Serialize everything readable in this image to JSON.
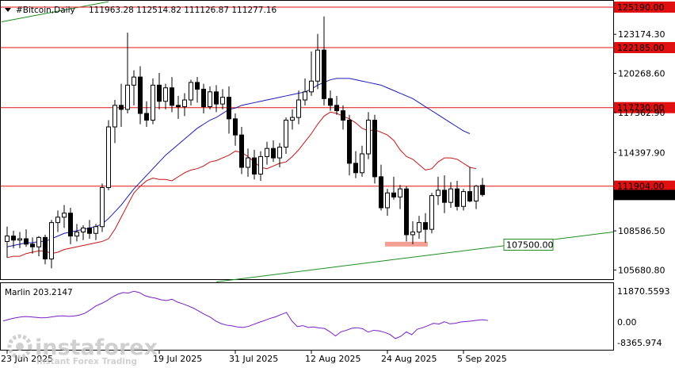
{
  "header": {
    "symbol_text": "#Bitcoin,Daily",
    "ohlc_text": "111963.28 112514.82 111126.87 111277.16"
  },
  "indicator": {
    "name_text": "Marlin 203.2147",
    "scale_top": "11870.5593",
    "scale_mid": "0.00",
    "scale_bottom": "-8365.974"
  },
  "price_axis_labels": [
    "123174.30",
    "120268.60",
    "117362.90",
    "114397.90",
    "108586.50",
    "105680.80"
  ],
  "horizontal_levels": [
    {
      "value": 125190.0,
      "label": "125190.00"
    },
    {
      "value": 122185.0,
      "label": "122185.00"
    },
    {
      "value": 117730.0,
      "label": "117730.00"
    },
    {
      "value": 111904.0,
      "label": "111904.00"
    }
  ],
  "current_price_label": "111277.16",
  "support_label": "107500.00",
  "date_labels": [
    {
      "index": 0,
      "label": "23 Jun 2025"
    },
    {
      "index": 24,
      "label": "19 Jul 2025"
    },
    {
      "index": 36,
      "label": "31 Jul 2025"
    },
    {
      "index": 48,
      "label": "12 Aug 2025"
    },
    {
      "index": 60,
      "label": "24 Aug 2025"
    },
    {
      "index": 72,
      "label": "5 Sep 2025"
    }
  ],
  "watermark": {
    "brand": "instaforex",
    "tagline": "Instant Forex Trading"
  },
  "chart_data": {
    "type": "candlestick",
    "title": "#Bitcoin,Daily",
    "ylim": [
      105000,
      125600
    ],
    "candles": [
      {
        "o": 107800,
        "h": 108900,
        "l": 106600,
        "c": 108200
      },
      {
        "o": 108200,
        "h": 108600,
        "l": 107300,
        "c": 107900
      },
      {
        "o": 107900,
        "h": 108500,
        "l": 107300,
        "c": 108000
      },
      {
        "o": 108000,
        "h": 108700,
        "l": 107400,
        "c": 107600
      },
      {
        "o": 107600,
        "h": 108100,
        "l": 106900,
        "c": 107400
      },
      {
        "o": 107400,
        "h": 108200,
        "l": 106700,
        "c": 108100
      },
      {
        "o": 108100,
        "h": 108300,
        "l": 106100,
        "c": 106500
      },
      {
        "o": 106500,
        "h": 109400,
        "l": 105800,
        "c": 109200
      },
      {
        "o": 109200,
        "h": 110100,
        "l": 108500,
        "c": 109600
      },
      {
        "o": 109600,
        "h": 110500,
        "l": 108800,
        "c": 109900
      },
      {
        "o": 109900,
        "h": 110300,
        "l": 107600,
        "c": 108200
      },
      {
        "o": 108200,
        "h": 109100,
        "l": 107800,
        "c": 108500
      },
      {
        "o": 108500,
        "h": 109000,
        "l": 107900,
        "c": 108800
      },
      {
        "o": 108800,
        "h": 109400,
        "l": 108000,
        "c": 108400
      },
      {
        "o": 108400,
        "h": 109100,
        "l": 107900,
        "c": 108900
      },
      {
        "o": 108900,
        "h": 112100,
        "l": 108500,
        "c": 111800
      },
      {
        "o": 111800,
        "h": 116800,
        "l": 111600,
        "c": 116300
      },
      {
        "o": 116300,
        "h": 118300,
        "l": 115100,
        "c": 117900
      },
      {
        "o": 117900,
        "h": 119500,
        "l": 116300,
        "c": 117600
      },
      {
        "o": 117600,
        "h": 123300,
        "l": 117300,
        "c": 119400
      },
      {
        "o": 119400,
        "h": 120500,
        "l": 117900,
        "c": 120000
      },
      {
        "o": 120000,
        "h": 120800,
        "l": 116500,
        "c": 117300
      },
      {
        "o": 117300,
        "h": 118200,
        "l": 116300,
        "c": 116800
      },
      {
        "o": 116800,
        "h": 119900,
        "l": 116500,
        "c": 119400
      },
      {
        "o": 119400,
        "h": 120300,
        "l": 117600,
        "c": 118200
      },
      {
        "o": 118200,
        "h": 119500,
        "l": 117600,
        "c": 119200
      },
      {
        "o": 119200,
        "h": 120000,
        "l": 117400,
        "c": 117900
      },
      {
        "o": 117900,
        "h": 118600,
        "l": 116900,
        "c": 117800
      },
      {
        "o": 117800,
        "h": 118800,
        "l": 117100,
        "c": 118300
      },
      {
        "o": 118300,
        "h": 119800,
        "l": 117900,
        "c": 119600
      },
      {
        "o": 119600,
        "h": 120000,
        "l": 118100,
        "c": 119100
      },
      {
        "o": 119100,
        "h": 119500,
        "l": 117300,
        "c": 117800
      },
      {
        "o": 117800,
        "h": 119300,
        "l": 117600,
        "c": 118900
      },
      {
        "o": 118900,
        "h": 119400,
        "l": 117400,
        "c": 118000
      },
      {
        "o": 118000,
        "h": 119100,
        "l": 117600,
        "c": 118500
      },
      {
        "o": 118500,
        "h": 119300,
        "l": 115800,
        "c": 116900
      },
      {
        "o": 116900,
        "h": 117300,
        "l": 114900,
        "c": 115700
      },
      {
        "o": 115700,
        "h": 116300,
        "l": 112800,
        "c": 113300
      },
      {
        "o": 113300,
        "h": 114700,
        "l": 112600,
        "c": 114000
      },
      {
        "o": 114000,
        "h": 114600,
        "l": 112400,
        "c": 112800
      },
      {
        "o": 112800,
        "h": 114500,
        "l": 112300,
        "c": 114100
      },
      {
        "o": 114100,
        "h": 115200,
        "l": 113500,
        "c": 114700
      },
      {
        "o": 114700,
        "h": 115300,
        "l": 113700,
        "c": 114000
      },
      {
        "o": 114000,
        "h": 115100,
        "l": 113300,
        "c": 114800
      },
      {
        "o": 114800,
        "h": 117000,
        "l": 114300,
        "c": 116800
      },
      {
        "o": 116800,
        "h": 117600,
        "l": 116100,
        "c": 117000
      },
      {
        "o": 117000,
        "h": 119000,
        "l": 116500,
        "c": 118300
      },
      {
        "o": 118300,
        "h": 119900,
        "l": 117900,
        "c": 118900
      },
      {
        "o": 118900,
        "h": 121900,
        "l": 118600,
        "c": 119700
      },
      {
        "o": 119700,
        "h": 123200,
        "l": 119100,
        "c": 122000
      },
      {
        "o": 122000,
        "h": 124500,
        "l": 117900,
        "c": 118400
      },
      {
        "o": 118400,
        "h": 119000,
        "l": 117500,
        "c": 117900
      },
      {
        "o": 117900,
        "h": 118600,
        "l": 117200,
        "c": 117500
      },
      {
        "o": 117500,
        "h": 117900,
        "l": 116100,
        "c": 116800
      },
      {
        "o": 116800,
        "h": 117200,
        "l": 112700,
        "c": 113600
      },
      {
        "o": 113600,
        "h": 114500,
        "l": 112500,
        "c": 112900
      },
      {
        "o": 112900,
        "h": 114900,
        "l": 112600,
        "c": 114300
      },
      {
        "o": 114300,
        "h": 117400,
        "l": 113900,
        "c": 116800
      },
      {
        "o": 116800,
        "h": 117200,
        "l": 112100,
        "c": 112600
      },
      {
        "o": 112600,
        "h": 113500,
        "l": 110100,
        "c": 110300
      },
      {
        "o": 110300,
        "h": 111700,
        "l": 109700,
        "c": 111400
      },
      {
        "o": 111400,
        "h": 112600,
        "l": 110900,
        "c": 111100
      },
      {
        "o": 111100,
        "h": 112000,
        "l": 110200,
        "c": 111700
      },
      {
        "o": 111700,
        "h": 111900,
        "l": 107800,
        "c": 108300
      },
      {
        "o": 108300,
        "h": 109300,
        "l": 107600,
        "c": 108500
      },
      {
        "o": 108500,
        "h": 109700,
        "l": 108000,
        "c": 109200
      },
      {
        "o": 109200,
        "h": 109900,
        "l": 107700,
        "c": 108700
      },
      {
        "o": 108700,
        "h": 111400,
        "l": 108400,
        "c": 111200
      },
      {
        "o": 111200,
        "h": 112600,
        "l": 110500,
        "c": 111600
      },
      {
        "o": 111600,
        "h": 112700,
        "l": 109900,
        "c": 110700
      },
      {
        "o": 110700,
        "h": 112200,
        "l": 110300,
        "c": 111700
      },
      {
        "o": 111700,
        "h": 112300,
        "l": 110100,
        "c": 110400
      },
      {
        "o": 110400,
        "h": 111700,
        "l": 110100,
        "c": 111500
      },
      {
        "o": 111500,
        "h": 113300,
        "l": 110700,
        "c": 110800
      },
      {
        "o": 110800,
        "h": 112000,
        "l": 110200,
        "c": 111900
      },
      {
        "o": 111963.28,
        "h": 112514.82,
        "l": 111126.87,
        "c": 111277.16
      }
    ],
    "blue_ma": [
      107400,
      107500,
      107600,
      107700,
      107700,
      107800,
      107800,
      108000,
      108200,
      108400,
      108500,
      108600,
      108700,
      108800,
      108900,
      109100,
      109500,
      110000,
      110500,
      111100,
      111700,
      112200,
      112700,
      113200,
      113700,
      114200,
      114600,
      115000,
      115400,
      115800,
      116200,
      116500,
      116800,
      117000,
      117300,
      117600,
      117700,
      117900,
      118000,
      118100,
      118200,
      118300,
      118400,
      118500,
      118600,
      118700,
      118800,
      118900,
      119100,
      119400,
      119600,
      119800,
      119900,
      119900,
      119900,
      119800,
      119700,
      119600,
      119500,
      119400,
      119200,
      119000,
      118800,
      118600,
      118400,
      118100,
      117800,
      117500,
      117200,
      116900,
      116600,
      116300,
      116000,
      115800
    ],
    "red_ma": [
      106600,
      106700,
      106700,
      106900,
      107000,
      107100,
      107100,
      106900,
      107000,
      107200,
      107300,
      107400,
      107500,
      107600,
      107700,
      107800,
      108000,
      108700,
      109600,
      110500,
      111400,
      111900,
      112300,
      112500,
      112400,
      112400,
      112300,
      112600,
      112900,
      113100,
      113200,
      113400,
      113700,
      113800,
      114000,
      114200,
      114500,
      114400,
      114100,
      113700,
      113300,
      113200,
      113400,
      113600,
      113700,
      114100,
      114600,
      115200,
      115800,
      116500,
      117100,
      117400,
      117300,
      117100,
      116900,
      116600,
      116200,
      116000,
      116100,
      115900,
      115700,
      115300,
      114600,
      114100,
      113900,
      113500,
      113100,
      113200,
      113700,
      114000,
      114000,
      113900,
      113600,
      113300,
      113200
    ],
    "support_line": {
      "start": [
        33,
        104800
      ],
      "end": [
        92,
        108500
      ],
      "label": "107500.00"
    },
    "upper_channel": {
      "start": [
        0,
        124100
      ],
      "end": [
        16,
        125600
      ]
    },
    "highlight_zone": {
      "index_start": 60,
      "index_end": 66,
      "value": 107600
    },
    "marlin": [
      0,
      600,
      1100,
      1500,
      1700,
      1600,
      1400,
      1200,
      1300,
      1600,
      1900,
      2000,
      1800,
      1900,
      2300,
      3000,
      4300,
      5800,
      6700,
      7800,
      9200,
      10300,
      11000,
      10800,
      11500,
      11000,
      9800,
      9200,
      8800,
      8200,
      7900,
      8400,
      7300,
      6600,
      5800,
      4900,
      3700,
      2500,
      1500,
      0,
      -1000,
      -1600,
      -1900,
      -2300,
      -2500,
      -2100,
      -1300,
      -500,
      200,
      1000,
      1600,
      2500,
      3300,
      0,
      -2200,
      -1800,
      -2500,
      -2300,
      -2700,
      -2900,
      -4200,
      -5800,
      -4200,
      -3600,
      -2800,
      -2600,
      -3000,
      -4300,
      -3600,
      -3800,
      -4400,
      -5200,
      -6800,
      -5900,
      -4200,
      -5300,
      -3200,
      -2600,
      -1800,
      -900,
      -1200,
      -300,
      -1100,
      -900,
      -400,
      -200,
      0,
      300,
      500,
      200
    ],
    "marlin_ylim": [
      -8365.974,
      11870.5593
    ]
  }
}
